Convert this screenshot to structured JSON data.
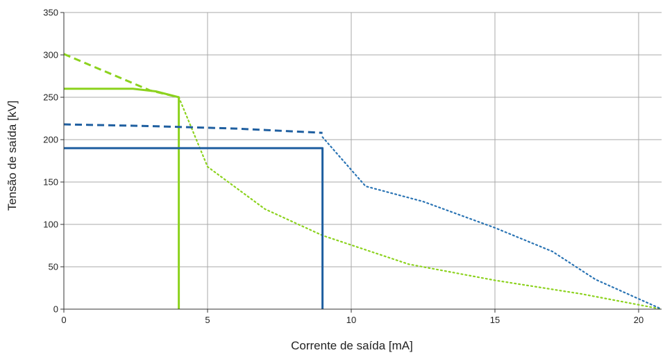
{
  "chart_data": {
    "type": "line",
    "xlabel": "Corrente de saída [mA]",
    "ylabel": "Tensão de saída [kV]",
    "xlim": [
      0,
      20.8
    ],
    "ylim": [
      0,
      350
    ],
    "xticks": [
      0,
      5,
      10,
      15,
      20
    ],
    "yticks": [
      0,
      50,
      100,
      150,
      200,
      250,
      300,
      350
    ],
    "xtick_labels": [
      "0",
      "5",
      "10",
      "15",
      "20"
    ],
    "ytick_labels": [
      "0",
      "50",
      "100",
      "150",
      "200",
      "250",
      "300",
      "350"
    ],
    "grid": true,
    "legend": "none",
    "series": [
      {
        "color": "#8cd21e",
        "style": "dashed",
        "points": [
          [
            0,
            301
          ],
          [
            3.0,
            258
          ],
          [
            4.0,
            250
          ]
        ]
      },
      {
        "color": "#8cd21e",
        "style": "solid",
        "points": [
          [
            0,
            260
          ],
          [
            2.4,
            260
          ],
          [
            3.2,
            257
          ],
          [
            4.0,
            250
          ],
          [
            4.0,
            0
          ]
        ]
      },
      {
        "color": "#8cd21e",
        "style": "dotted",
        "points": [
          [
            4.0,
            250
          ],
          [
            5.0,
            168
          ],
          [
            7.0,
            118
          ],
          [
            9.0,
            87
          ],
          [
            12.0,
            53
          ],
          [
            15.0,
            34
          ],
          [
            18.0,
            18
          ],
          [
            20.8,
            0
          ]
        ]
      },
      {
        "color": "#1f5fa0",
        "style": "dashed",
        "points": [
          [
            0,
            218
          ],
          [
            3.0,
            216
          ],
          [
            6.0,
            213
          ],
          [
            9.0,
            208
          ]
        ]
      },
      {
        "color": "#1f5fa0",
        "style": "solid",
        "points": [
          [
            0,
            190
          ],
          [
            9.0,
            190
          ],
          [
            9.0,
            0
          ]
        ]
      },
      {
        "color": "#2a74b4",
        "style": "dotted",
        "points": [
          [
            9.0,
            203
          ],
          [
            10.5,
            145
          ],
          [
            12.5,
            127
          ],
          [
            15.0,
            96
          ],
          [
            17.0,
            68
          ],
          [
            18.5,
            35
          ],
          [
            20.8,
            0
          ]
        ]
      }
    ]
  }
}
